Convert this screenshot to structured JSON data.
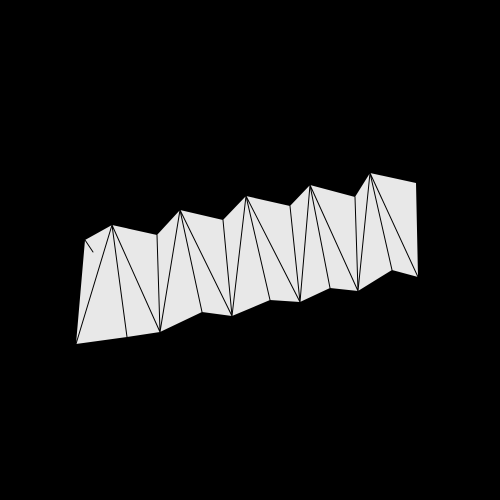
{
  "scene": {
    "background_color": "#000000",
    "surface_color": "#e8e8e8",
    "edge_color": "#000000",
    "object": "folded-triangulated-strip"
  }
}
